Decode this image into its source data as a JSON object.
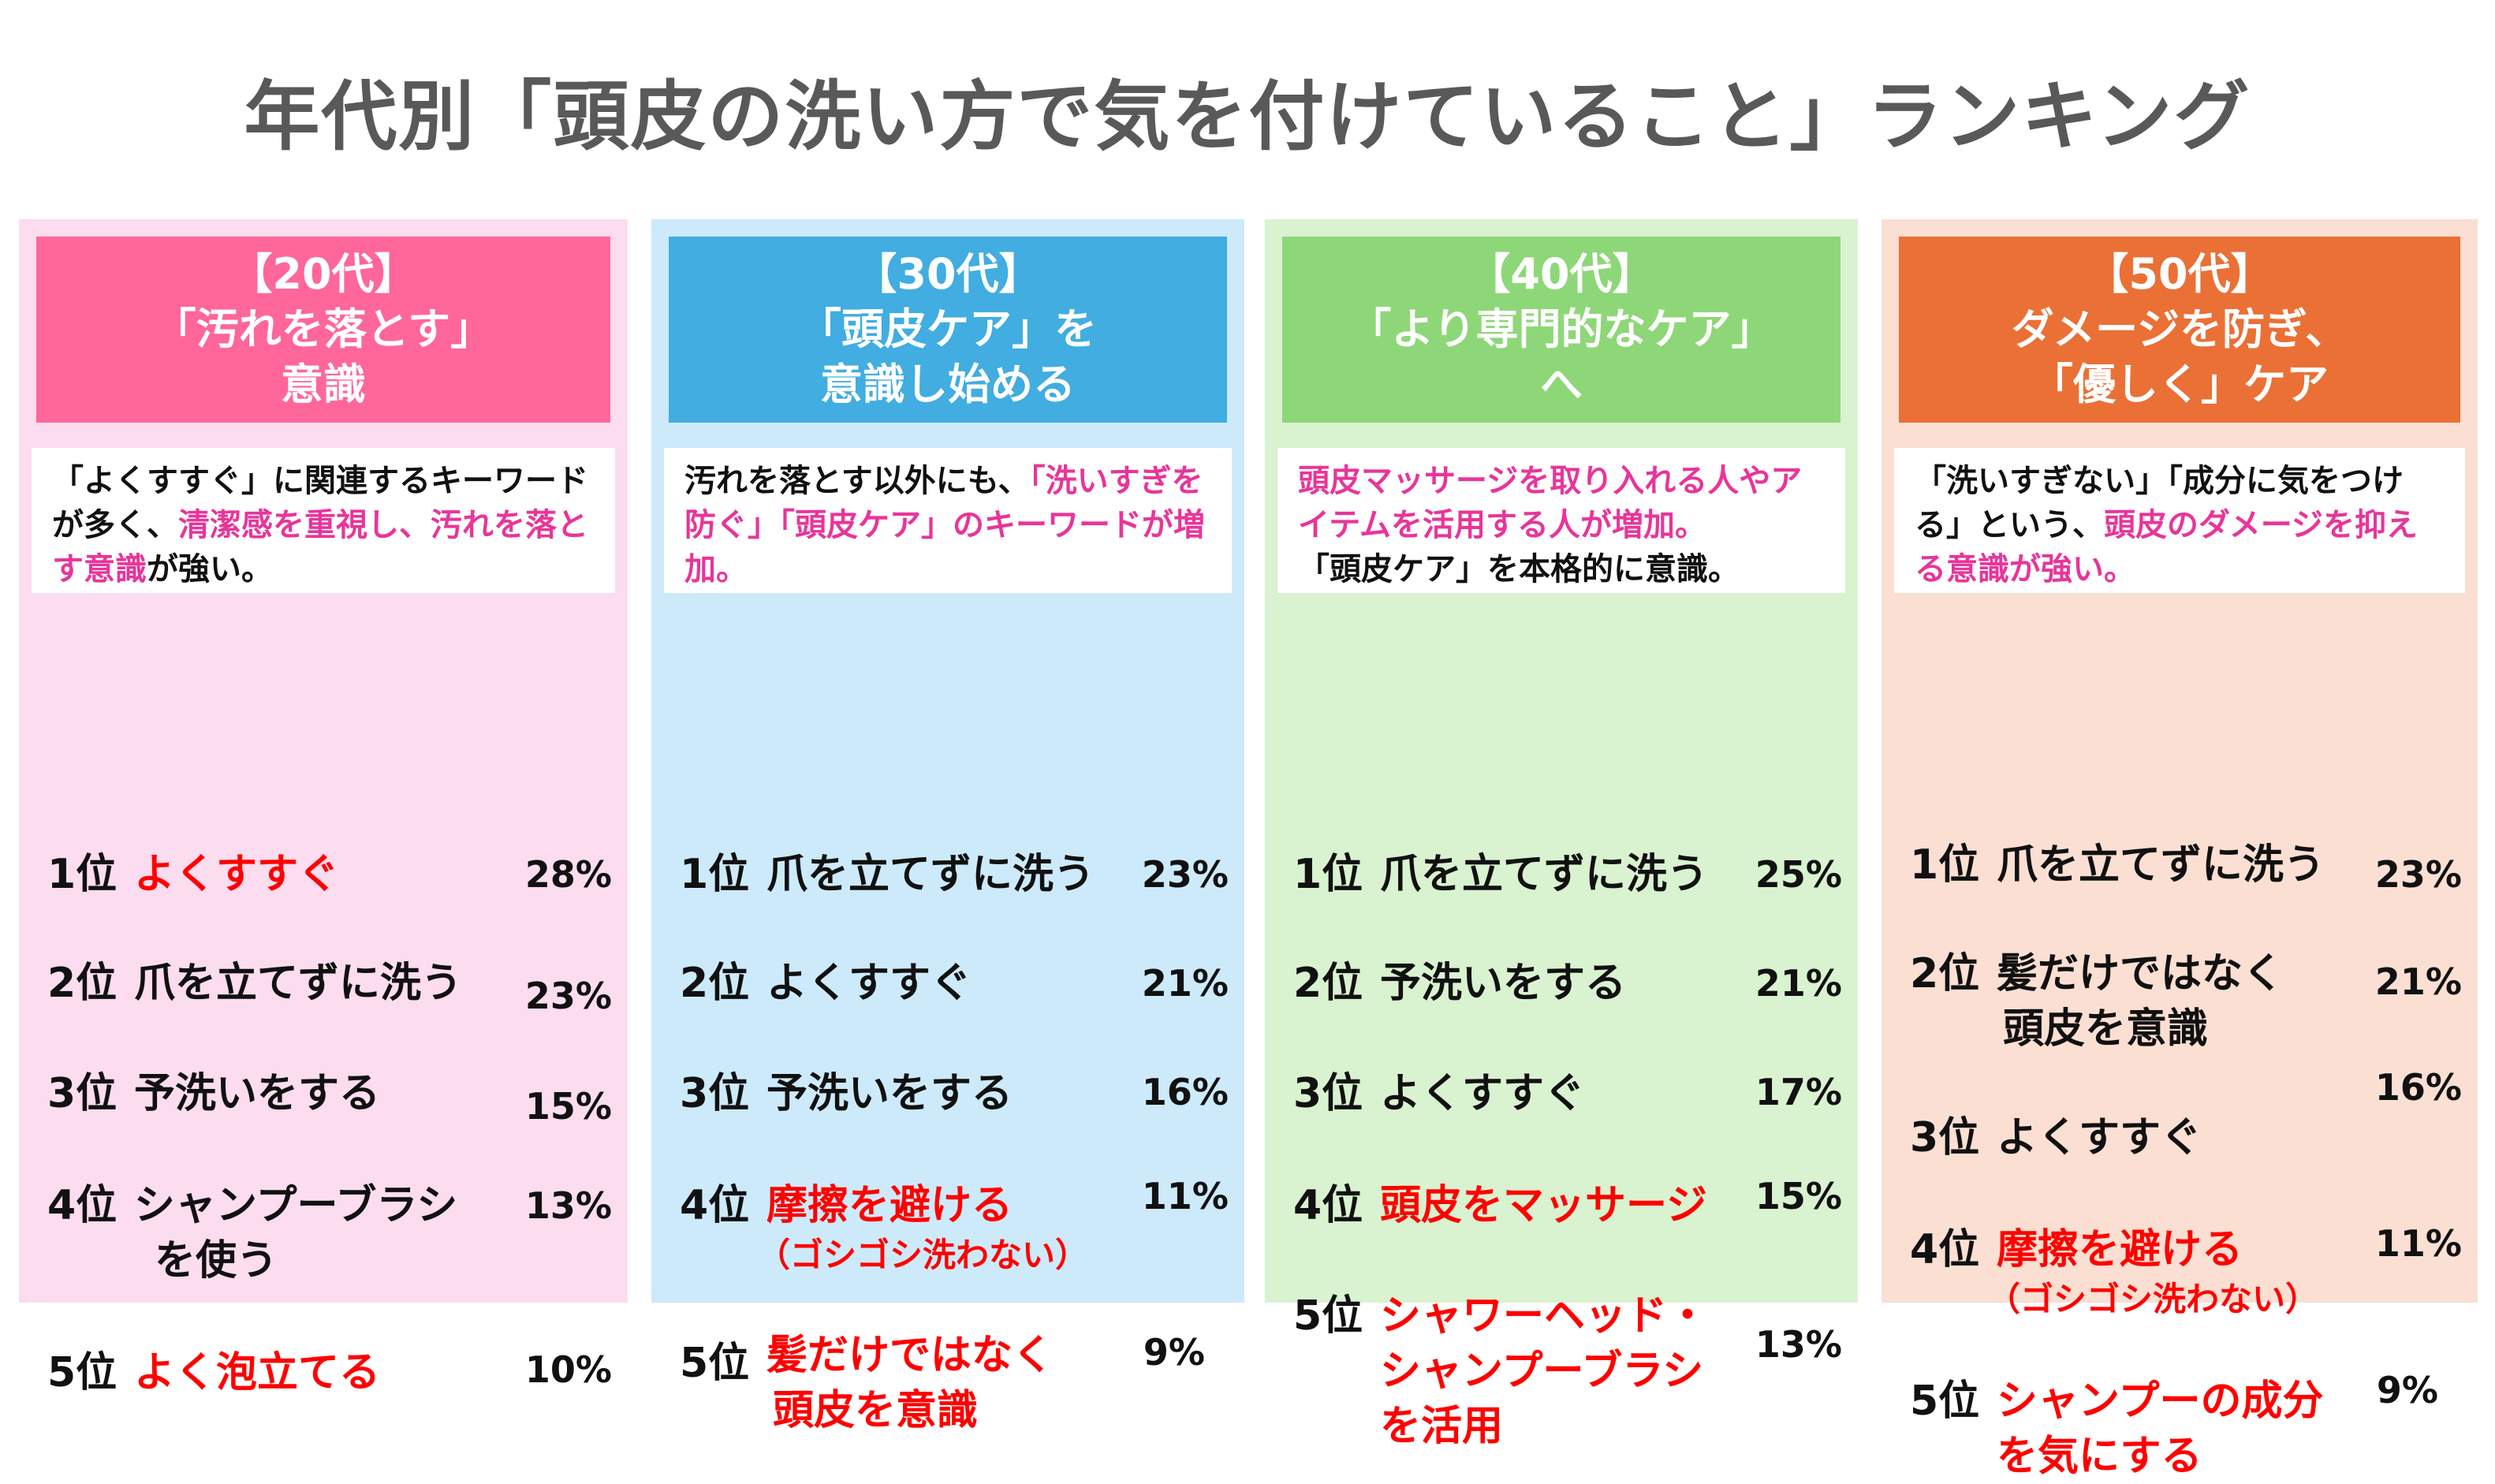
{
  "title": "年代別「頭皮の洗い方で気を付けていること」ランキング",
  "colors": {
    "c20": "#ff6699",
    "c30": "#41ade0",
    "c40": "#8ed778",
    "c50": "#ea7036",
    "highlight": "#e8359a",
    "rank_red": "#ff0000"
  },
  "columns": [
    {
      "head": [
        "【20代】",
        "「汚れを落とす」",
        "意識"
      ],
      "desc": {
        "before": "「よくすすぐ」に関連するキーワードが多く、",
        "highlight": "清潔感を重視し、汚れを落とす意識",
        "after": "が強い。"
      },
      "ranks": [
        {
          "pos": "1位",
          "label": "よくすすぐ",
          "pct": "28%"
        },
        {
          "pos": "2位",
          "label": "爪を立てずに洗う",
          "pct": "23%"
        },
        {
          "pos": "3位",
          "label": "予洗いをする",
          "pct": "15%"
        },
        {
          "pos": "4位",
          "label": "シャンプーブラシ",
          "label2": "を使う",
          "pct": "13%"
        },
        {
          "pos": "5位",
          "label": "よく泡立てる",
          "pct": "10%"
        }
      ]
    },
    {
      "head": [
        "【30代】",
        "「頭皮ケア」を",
        "意識し始める"
      ],
      "desc": {
        "before": "汚れを落とす以外にも、",
        "highlight": "「洗いすぎを防ぐ」「頭皮ケア」のキーワードが増加。",
        "after": ""
      },
      "ranks": [
        {
          "pos": "1位",
          "label": "爪を立てずに洗う",
          "pct": "23%"
        },
        {
          "pos": "2位",
          "label": "よくすすぐ",
          "pct": "21%"
        },
        {
          "pos": "3位",
          "label": "予洗いをする",
          "pct": "16%"
        },
        {
          "pos": "4位",
          "label": "摩擦を避ける",
          "label2": "（ゴシゴシ洗わない）",
          "pct": "11%"
        },
        {
          "pos": "5位",
          "label": "髪だけではなく",
          "label2": "頭皮を意識",
          "pct": "9%"
        }
      ]
    },
    {
      "head": [
        "【40代】",
        "「より専門的なケア」",
        "へ"
      ],
      "desc": {
        "before": "",
        "highlight": "頭皮マッサージを取り入れる人やアイテムを活用する人が増加。",
        "after": "「頭皮ケア」を本格的に意識。"
      },
      "ranks": [
        {
          "pos": "1位",
          "label": "爪を立てずに洗う",
          "pct": "25%"
        },
        {
          "pos": "2位",
          "label": "予洗いをする",
          "pct": "21%"
        },
        {
          "pos": "3位",
          "label": "よくすすぐ",
          "pct": "17%"
        },
        {
          "pos": "4位",
          "label": "頭皮をマッサージ",
          "pct": "15%"
        },
        {
          "pos": "5位",
          "label": "シャワーヘッド・",
          "label2": "シャンプーブラシ",
          "label3": "を活用",
          "pct": "13%"
        }
      ]
    },
    {
      "head": [
        "【50代】",
        "ダメージを防ぎ、",
        "「優しく」ケア"
      ],
      "desc": {
        "before": "「洗いすぎない」「成分に気をつける」という、",
        "highlight": "頭皮のダメージを抑える意識が強い。",
        "after": ""
      },
      "ranks": [
        {
          "pos": "1位",
          "label": "爪を立てずに洗う",
          "pct": "23%"
        },
        {
          "pos": "2位",
          "label": "髪だけではなく",
          "label2": "頭皮を意識",
          "pct": "21%"
        },
        {
          "pos": "3位",
          "label": "よくすすぐ",
          "pct": "16%"
        },
        {
          "pos": "4位",
          "label": "摩擦を避ける",
          "label2": "（ゴシゴシ洗わない）",
          "pct": "11%"
        },
        {
          "pos": "5位",
          "label": "シャンプーの成分",
          "label2": "を気にする",
          "pct": "9%"
        }
      ]
    }
  ]
}
